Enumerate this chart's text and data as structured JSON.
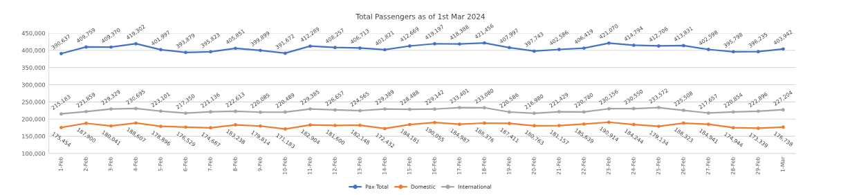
{
  "chart_data": {
    "type": "line",
    "title": "Total Passengers as of 1st Mar 2024",
    "categories": [
      "1-Feb",
      "2-Feb",
      "3-Feb",
      "4-Feb",
      "5-Feb",
      "6-Feb",
      "7-Feb",
      "8-Feb",
      "9-Feb",
      "10-Feb",
      "11-Feb",
      "12-Feb",
      "13-Feb",
      "14-Feb",
      "15-Feb",
      "16-Feb",
      "17-Feb",
      "18-Feb",
      "19-Feb",
      "20-Feb",
      "21-Feb",
      "22-Feb",
      "23-Feb",
      "24-Feb",
      "25-Feb",
      "26-Feb",
      "27-Feb",
      "28-Feb",
      "29-Feb",
      "1-Mar"
    ],
    "series": [
      {
        "name": "Pax Total",
        "color": "#4472c4",
        "values": [
          390637,
          409759,
          409370,
          419302,
          401997,
          393879,
          395823,
          405851,
          399899,
          391672,
          412289,
          408257,
          406713,
          401821,
          412669,
          419197,
          418388,
          421456,
          407997,
          397743,
          402586,
          406419,
          421070,
          414794,
          412706,
          413831,
          402598,
          395798,
          396235,
          403942
        ],
        "value_labels": [
          "390,637",
          "409,759",
          "409,370",
          "419,302",
          "401,997",
          "393,879",
          "395,823",
          "405,851",
          "399,899",
          "391,672",
          "412,289",
          "408,257",
          "406,713",
          "401,821",
          "412,669",
          "419,197",
          "418,388",
          "421,456",
          "407,997",
          "397,743",
          "402,586",
          "406,419",
          "421,070",
          "414,794",
          "412,706",
          "413,831",
          "402,598",
          "395,798",
          "396,235",
          "403,942"
        ]
      },
      {
        "name": "Domestic",
        "color": "#ed7d31",
        "values": [
          175454,
          187900,
          180041,
          188607,
          178896,
          176529,
          174687,
          183238,
          179814,
          171183,
          182904,
          181600,
          182148,
          172432,
          184181,
          190055,
          184987,
          188376,
          187411,
          180763,
          181157,
          185639,
          190914,
          184244,
          179134,
          188323,
          184941,
          174944,
          173339,
          176738
        ],
        "value_labels": [
          "175,454",
          "187,900",
          "180,041",
          "188,607",
          "178,896",
          "176,529",
          "174,687",
          "183,238",
          "179,814",
          "171,183",
          "182,904",
          "181,600",
          "182,148",
          "172,432",
          "184,181",
          "190,055",
          "184,987",
          "188,376",
          "187,411",
          "180,763",
          "181,157",
          "185,639",
          "190,914",
          "184,244",
          "179,134",
          "188,323",
          "184,941",
          "174,944",
          "173,339",
          "176,738"
        ]
      },
      {
        "name": "International",
        "color": "#a5a5a5",
        "values": [
          215183,
          221859,
          229329,
          230695,
          223101,
          217350,
          221136,
          222613,
          220085,
          220489,
          229385,
          226657,
          224565,
          229389,
          228488,
          229142,
          233401,
          233080,
          220586,
          216980,
          221429,
          220780,
          230156,
          230550,
          233572,
          225508,
          217657,
          220854,
          222896,
          227204
        ],
        "value_labels": [
          "215,183",
          "221,859",
          "229,329",
          "230,695",
          "223,101",
          "217,350",
          "221,136",
          "222,613",
          "220,085",
          "220,489",
          "229,385",
          "226,657",
          "224,565",
          "229,389",
          "228,488",
          "229,142",
          "233,401",
          "233,080",
          "220,586",
          "216,980",
          "221,429",
          "220,780",
          "230,156",
          "230,550",
          "233,572",
          "225,508",
          "217,657",
          "220,854",
          "222,896",
          "227,204"
        ]
      }
    ],
    "ylim": [
      100000,
      450000
    ],
    "yticks": [
      {
        "value": 100000,
        "label": "100,000"
      },
      {
        "value": 150000,
        "label": "150,000"
      },
      {
        "value": 200000,
        "label": "200,000"
      },
      {
        "value": 250000,
        "label": "250,000"
      },
      {
        "value": 300000,
        "label": "300,000"
      },
      {
        "value": 350000,
        "label": "350,000"
      },
      {
        "value": 400000,
        "label": "400,000"
      },
      {
        "value": 450000,
        "label": "450,000"
      }
    ],
    "grid": "y",
    "legend": "bottom",
    "marker": "circle",
    "line_style": "solid"
  }
}
